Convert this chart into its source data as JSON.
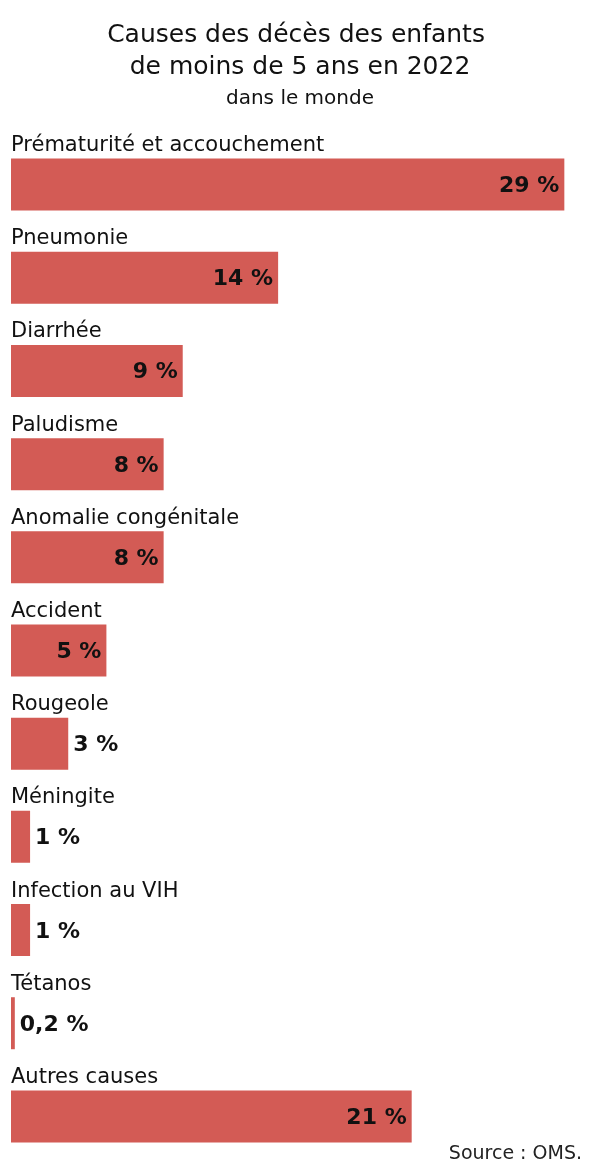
{
  "chart_data": {
    "type": "bar",
    "orientation": "horizontal",
    "title": "Causes des décès des enfants de moins de 5 ans en 2022",
    "subtitle": "dans le monde",
    "categories": [
      "Prématurité et accouchement",
      "Pneumonie",
      "Diarrhée",
      "Paludisme",
      "Anomalie congénitale",
      "Accident",
      "Rougeole",
      "Méningite",
      "Infection au VIH",
      "Tétanos",
      "Autres causes"
    ],
    "values": [
      29,
      14,
      9,
      8,
      8,
      5,
      3,
      1,
      1,
      0.2,
      21
    ],
    "value_labels": [
      "29 %",
      "14 %",
      "9 %",
      "8 %",
      "8 %",
      "5 %",
      "3 %",
      "1 %",
      "1 %",
      "0,2 %",
      "21 %"
    ],
    "color": "#d35b55",
    "annotations": [
      "Source : OMS."
    ]
  }
}
